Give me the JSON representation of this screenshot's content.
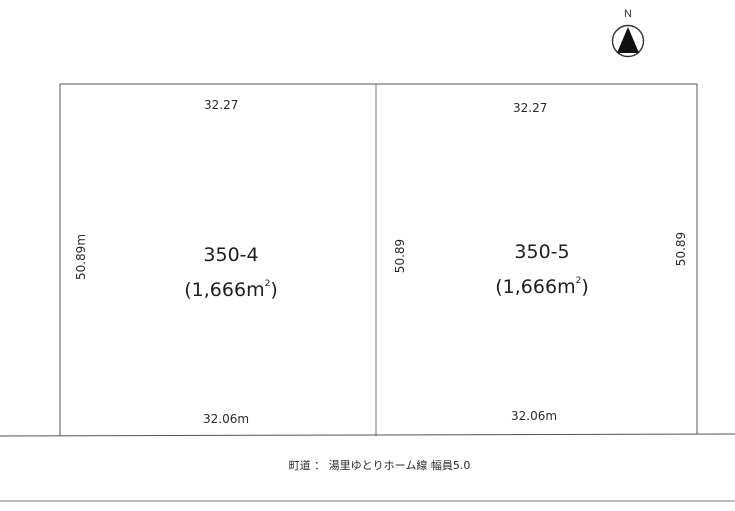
{
  "north": {
    "label": "N",
    "icon": "north-arrow-icon"
  },
  "lots": [
    {
      "number": "350-4",
      "area": "(1,666",
      "area_unit": "m",
      "area_unit_sup": "2",
      "area_close": ")",
      "top_dim": "32.27",
      "bottom_dim": "32.06m",
      "left_dim": "50.89m"
    },
    {
      "number": "350-5",
      "area": "(1,666",
      "area_unit": "m",
      "area_unit_sup": "2",
      "area_close": ")",
      "top_dim": "32.27",
      "bottom_dim": "32.06m",
      "left_dim": "50.89",
      "right_dim": "50.89"
    }
  ],
  "road": {
    "label": "町道 ： 湯里ゆとりホーム線 幅員5.0"
  },
  "colors": {
    "line": "#555555",
    "text": "#222222"
  }
}
